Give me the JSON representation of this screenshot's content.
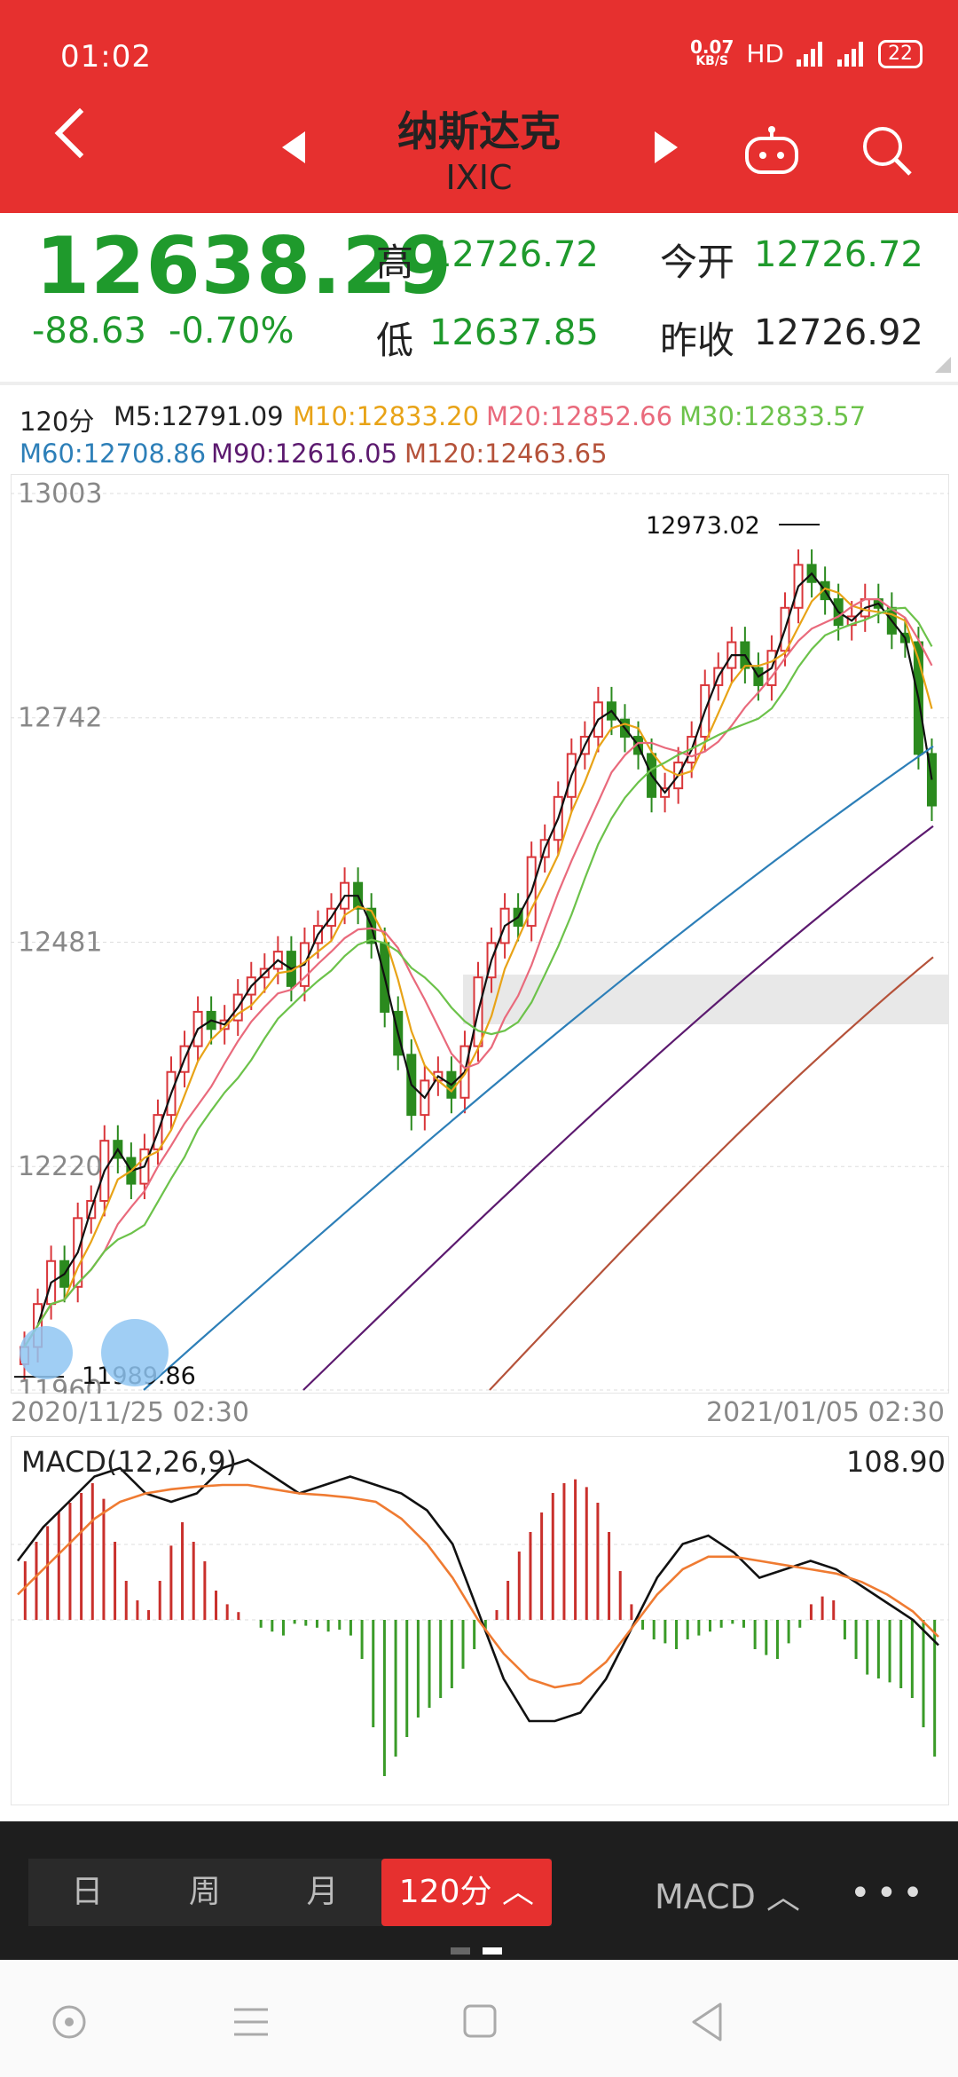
{
  "status": {
    "time": "01:02",
    "net_speed": "0.07",
    "net_unit": "KB/S",
    "hd": "HD",
    "sig1": "4G",
    "sig2": "4G",
    "battery": "22"
  },
  "header": {
    "title": "纳斯达克",
    "code": "IXIC"
  },
  "quote": {
    "price": "12638.29",
    "change": "-88.63",
    "change_pct": "-0.70%",
    "high_label": "高",
    "high": "12726.72",
    "low_label": "低",
    "low": "12637.85",
    "open_label": "今开",
    "open": "12726.72",
    "prev_label": "昨收",
    "prev": "12726.92"
  },
  "ma_legend": [
    {
      "label": "120分",
      "color": "#222222"
    },
    {
      "label": "M5:12791.09",
      "color": "#222222"
    },
    {
      "label": "M10:12833.20",
      "color": "#e8a317"
    },
    {
      "label": "M20:12852.66",
      "color": "#e96a7c"
    },
    {
      "label": "M30:12833.57",
      "color": "#6cc24a"
    },
    {
      "label": "M60:12708.86",
      "color": "#2d7fb8"
    },
    {
      "label": "M90:12616.05",
      "color": "#5c1a6f"
    },
    {
      "label": "M120:12463.65",
      "color": "#b5523a"
    }
  ],
  "chart_data": [
    {
      "type": "candlestick",
      "title": "",
      "timeframe": "120分",
      "yticks": [
        "13003",
        "12742",
        "12481",
        "12220",
        "11960"
      ],
      "ylim": [
        11960,
        13003
      ],
      "high_marker": "12973.02",
      "low_marker": "11989.86",
      "x_start": "2020/11/25 02:30",
      "x_end": "2021/01/05 02:30",
      "closes": [
        12010,
        12060,
        12110,
        12080,
        12160,
        12180,
        12250,
        12230,
        12200,
        12240,
        12280,
        12330,
        12360,
        12400,
        12380,
        12390,
        12420,
        12440,
        12450,
        12470,
        12430,
        12480,
        12500,
        12520,
        12550,
        12520,
        12480,
        12400,
        12350,
        12280,
        12320,
        12330,
        12300,
        12360,
        12440,
        12480,
        12520,
        12500,
        12580,
        12600,
        12650,
        12700,
        12720,
        12760,
        12740,
        12720,
        12700,
        12650,
        12660,
        12690,
        12720,
        12780,
        12800,
        12830,
        12800,
        12780,
        12820,
        12870,
        12920,
        12900,
        12880,
        12850,
        12860,
        12880,
        12870,
        12840,
        12830,
        12700,
        12640
      ],
      "series": [
        {
          "name": "M5",
          "values": [
            12790,
            12791
          ]
        },
        {
          "name": "M10",
          "values": [
            12833.2
          ]
        },
        {
          "name": "M20",
          "values": [
            12852.66
          ]
        },
        {
          "name": "M30",
          "values": [
            12833.57
          ]
        },
        {
          "name": "M60",
          "values": [
            12708.86
          ]
        },
        {
          "name": "M90",
          "values": [
            12616.05
          ]
        },
        {
          "name": "M120",
          "values": [
            12463.65
          ]
        }
      ]
    },
    {
      "type": "bar",
      "title": "MACD(12,26,9)",
      "value": "108.90",
      "hist": [
        30,
        40,
        48,
        55,
        60,
        65,
        70,
        62,
        40,
        20,
        10,
        5,
        20,
        38,
        50,
        40,
        30,
        15,
        8,
        4,
        0,
        -4,
        -6,
        -8,
        -2,
        -3,
        -4,
        -6,
        -5,
        -8,
        -20,
        -55,
        -80,
        -70,
        -60,
        -50,
        -45,
        -40,
        -35,
        -25,
        -15,
        -5,
        5,
        20,
        35,
        45,
        55,
        65,
        70,
        72,
        68,
        60,
        45,
        25,
        8,
        -5,
        -10,
        -12,
        -15,
        -10,
        -8,
        -6,
        -4,
        -2,
        -4,
        -15,
        -18,
        -20,
        -12,
        -4,
        8,
        12,
        10,
        -10,
        -20,
        -28,
        -30,
        -32,
        -35,
        -40,
        -55,
        -70
      ],
      "macd_line": [
        220,
        260,
        290,
        320,
        330,
        300,
        290,
        300,
        330,
        340,
        320,
        300,
        310,
        320,
        310,
        300,
        280,
        240,
        160,
        80,
        30,
        30,
        40,
        80,
        140,
        200,
        240,
        250,
        230,
        200,
        210,
        220,
        210,
        190,
        170,
        150,
        120
      ],
      "signal_line": [
        180,
        210,
        240,
        270,
        290,
        300,
        305,
        308,
        310,
        310,
        305,
        300,
        298,
        295,
        290,
        270,
        240,
        200,
        150,
        110,
        80,
        70,
        75,
        100,
        140,
        180,
        210,
        225,
        225,
        220,
        215,
        210,
        205,
        195,
        180,
        160,
        130
      ]
    }
  ],
  "toolbar": {
    "tabs": [
      "日",
      "周",
      "月",
      "120分"
    ],
    "active_suffix": "︿",
    "indicator": "MACD",
    "indicator_arrow": "︿",
    "more": "•••"
  }
}
